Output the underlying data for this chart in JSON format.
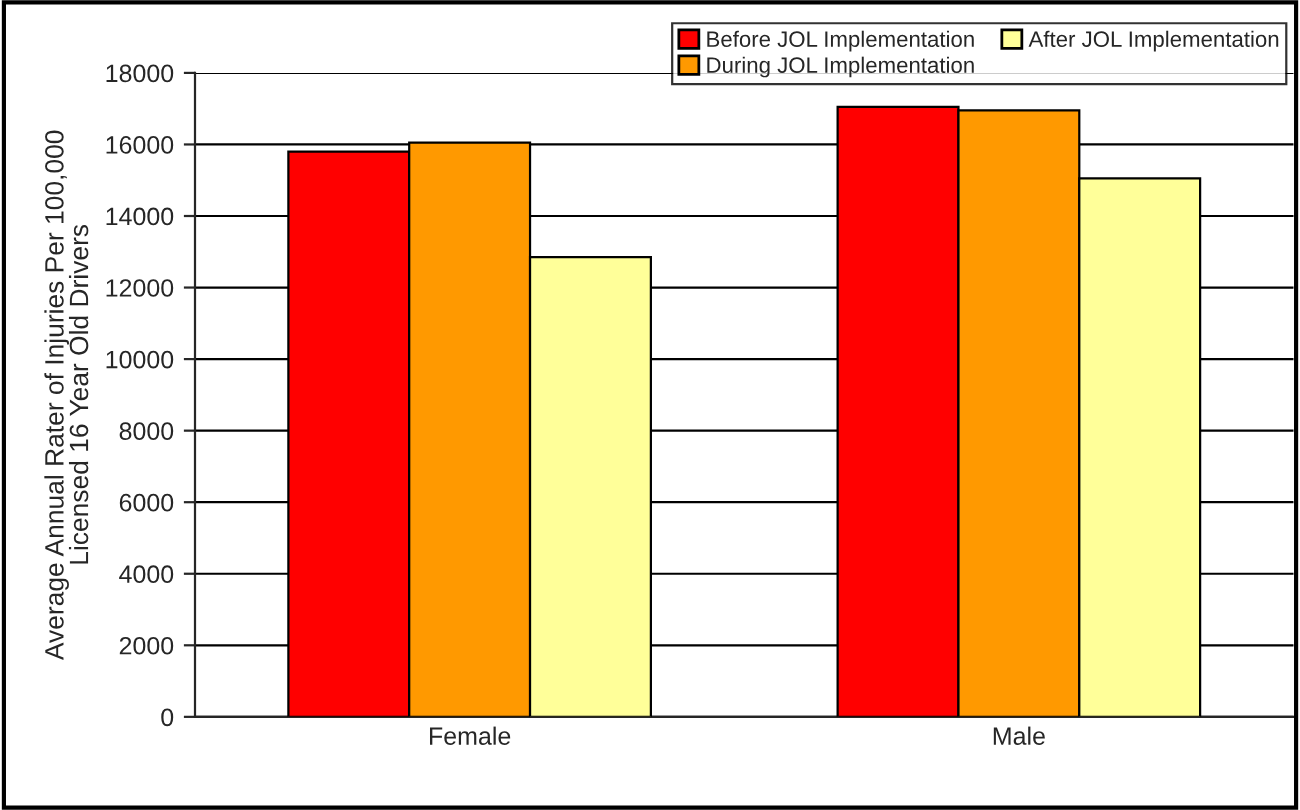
{
  "chart_data": {
    "type": "bar",
    "ylabel": "Average Annual Rater of Injuries Per 100,000\nLicensed 16 Year Old Drivers",
    "categories": [
      "Female",
      "Male"
    ],
    "series": [
      {
        "name": "Before JOL Implementation",
        "color": "#ff0000",
        "values": [
          15800,
          17050
        ]
      },
      {
        "name": "During JOL Implementation",
        "color": "#ff9900",
        "values": [
          16050,
          16950
        ]
      },
      {
        "name": "After JOL Implementation",
        "color": "#ffff99",
        "values": [
          12850,
          15050
        ]
      }
    ],
    "ylim": [
      0,
      18000
    ],
    "yticks": [
      0,
      2000,
      4000,
      6000,
      8000,
      10000,
      12000,
      14000,
      16000,
      18000
    ],
    "grid": "y",
    "legend": "top right"
  }
}
